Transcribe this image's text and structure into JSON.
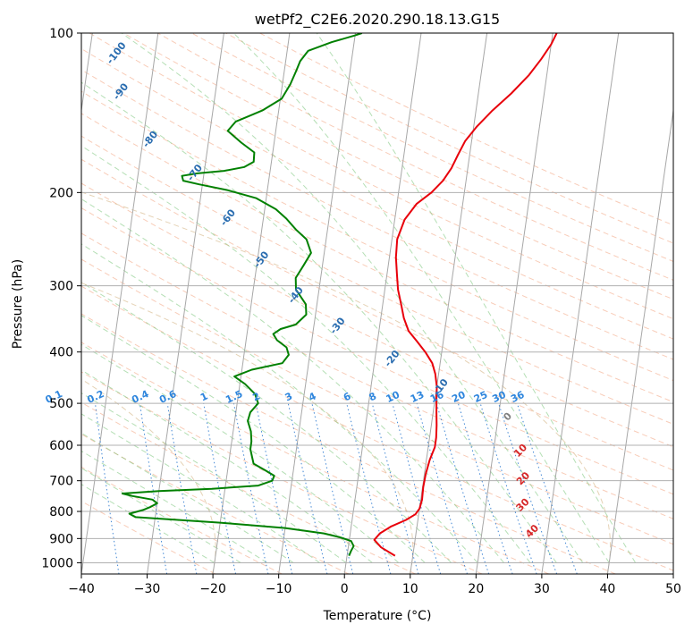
{
  "chart_data": {
    "type": "line",
    "subtype": "skew-t log-p diagram",
    "title": "wetPf2_C2E6.2020.290.18.13.G15",
    "xlabel": "Temperature (°C)",
    "ylabel": "Pressure (hPa)",
    "xlim": [
      -40,
      50
    ],
    "ylim": [
      1050,
      100
    ],
    "y_scale": "log",
    "grid": true,
    "x_ticks": [
      -40,
      -30,
      -20,
      -10,
      0,
      10,
      20,
      30,
      40,
      50
    ],
    "y_ticks": [
      1000,
      900,
      800,
      700,
      600,
      500,
      400,
      300,
      200,
      100
    ],
    "series": [
      {
        "color": "#e8000b",
        "points": [
          [
            7.3,
            970
          ],
          [
            5,
            935
          ],
          [
            3.8,
            905
          ],
          [
            4.5,
            880
          ],
          [
            6,
            855
          ],
          [
            8.2,
            830
          ],
          [
            9.5,
            810
          ],
          [
            10,
            790
          ],
          [
            10.2,
            760
          ],
          [
            10.1,
            720
          ],
          [
            10.2,
            680
          ],
          [
            10.5,
            640
          ],
          [
            11,
            605
          ],
          [
            11,
            580
          ],
          [
            10.8,
            550
          ],
          [
            10.5,
            520
          ],
          [
            10.2,
            490
          ],
          [
            10,
            465
          ],
          [
            9.5,
            440
          ],
          [
            8.8,
            420
          ],
          [
            7.5,
            400
          ],
          [
            6,
            382
          ],
          [
            4.5,
            365
          ],
          [
            3.5,
            345
          ],
          [
            2.8,
            325
          ],
          [
            2,
            305
          ],
          [
            1.5,
            285
          ],
          [
            1,
            265
          ],
          [
            0.8,
            245
          ],
          [
            1.5,
            225
          ],
          [
            3,
            210
          ],
          [
            5,
            200
          ],
          [
            6.5,
            190
          ],
          [
            7.5,
            180
          ],
          [
            8.2,
            170
          ],
          [
            9,
            160
          ],
          [
            10.5,
            150
          ],
          [
            12.5,
            140
          ],
          [
            15,
            130
          ],
          [
            17.3,
            120
          ],
          [
            18.8,
            112
          ],
          [
            20,
            105
          ],
          [
            20.6,
            100
          ]
        ]
      },
      {
        "color": "#008000",
        "points": [
          [
            0.3,
            970
          ],
          [
            0.5,
            950
          ],
          [
            0.8,
            930
          ],
          [
            0.3,
            910
          ],
          [
            -1.5,
            895
          ],
          [
            -4,
            880
          ],
          [
            -10,
            860
          ],
          [
            -20,
            840
          ],
          [
            -33,
            820
          ],
          [
            -34,
            808
          ],
          [
            -32,
            795
          ],
          [
            -31,
            785
          ],
          [
            -30,
            772
          ],
          [
            -30.8,
            760
          ],
          [
            -34,
            748
          ],
          [
            -35.5,
            740
          ],
          [
            -30,
            732
          ],
          [
            -22,
            725
          ],
          [
            -15,
            715
          ],
          [
            -13,
            700
          ],
          [
            -12.8,
            685
          ],
          [
            -14.2,
            670
          ],
          [
            -16.2,
            650
          ],
          [
            -16.6,
            630
          ],
          [
            -17,
            610
          ],
          [
            -17,
            590
          ],
          [
            -17.3,
            565
          ],
          [
            -18,
            540
          ],
          [
            -17.8,
            520
          ],
          [
            -16.8,
            500
          ],
          [
            -17.5,
            480
          ],
          [
            -19.2,
            460
          ],
          [
            -21,
            445
          ],
          [
            -18.5,
            432
          ],
          [
            -14,
            420
          ],
          [
            -13.2,
            405
          ],
          [
            -13.7,
            392
          ],
          [
            -15.3,
            380
          ],
          [
            -16,
            370
          ],
          [
            -15,
            362
          ],
          [
            -12.8,
            355
          ],
          [
            -11.4,
            340
          ],
          [
            -11.7,
            325
          ],
          [
            -13.5,
            305
          ],
          [
            -13.8,
            290
          ],
          [
            -12.9,
            275
          ],
          [
            -12,
            260
          ],
          [
            -13,
            245
          ],
          [
            -14.8,
            235
          ],
          [
            -16.5,
            224
          ],
          [
            -18.3,
            215
          ],
          [
            -21.5,
            205
          ],
          [
            -26,
            198
          ],
          [
            -30.5,
            193
          ],
          [
            -33,
            190
          ],
          [
            -33.3,
            186
          ],
          [
            -31,
            184
          ],
          [
            -27,
            182
          ],
          [
            -24,
            179
          ],
          [
            -22.7,
            175
          ],
          [
            -22.8,
            168
          ],
          [
            -25,
            161
          ],
          [
            -27.3,
            153
          ],
          [
            -26.3,
            147
          ],
          [
            -22.5,
            140
          ],
          [
            -19.8,
            133
          ],
          [
            -18.8,
            125
          ],
          [
            -18.2,
            118
          ],
          [
            -17.8,
            113
          ],
          [
            -16.8,
            108
          ],
          [
            -13.4,
            104
          ],
          [
            -10,
            101
          ],
          [
            -9,
            100
          ]
        ]
      }
    ],
    "isotherm_labels": [],
    "dry_adiabat_labels": [
      {
        "text": "-100",
        "x": -45.5,
        "p": 110
      },
      {
        "text": "-90",
        "x": -44,
        "p": 130
      },
      {
        "text": "-80",
        "x": -38.5,
        "p": 160
      },
      {
        "text": "-70",
        "x": -31,
        "p": 185
      },
      {
        "text": "-60",
        "x": -25,
        "p": 225
      },
      {
        "text": "-50",
        "x": -19,
        "p": 270
      },
      {
        "text": "-40",
        "x": -13,
        "p": 315
      },
      {
        "text": "-30",
        "x": -6,
        "p": 360
      },
      {
        "text": "-20",
        "x": 3,
        "p": 415
      },
      {
        "text": "-10",
        "x": 11,
        "p": 470
      }
    ],
    "moist_adiabat_labels": [
      {
        "text": "0",
        "x": 21.8,
        "p": 535
      },
      {
        "text": "10",
        "x": 24.5,
        "p": 620
      },
      {
        "text": "20",
        "x": 25.5,
        "p": 700
      },
      {
        "text": "30",
        "x": 26,
        "p": 785
      },
      {
        "text": "40",
        "x": 28,
        "p": 880
      }
    ],
    "mixing_ratio_labels": [
      "0.1",
      "0.2",
      "0.4",
      "0.6",
      "1",
      "1.5",
      "2",
      "3",
      "4",
      "6",
      "8",
      "10",
      "13",
      "16",
      "20",
      "25",
      "30",
      "36"
    ]
  }
}
